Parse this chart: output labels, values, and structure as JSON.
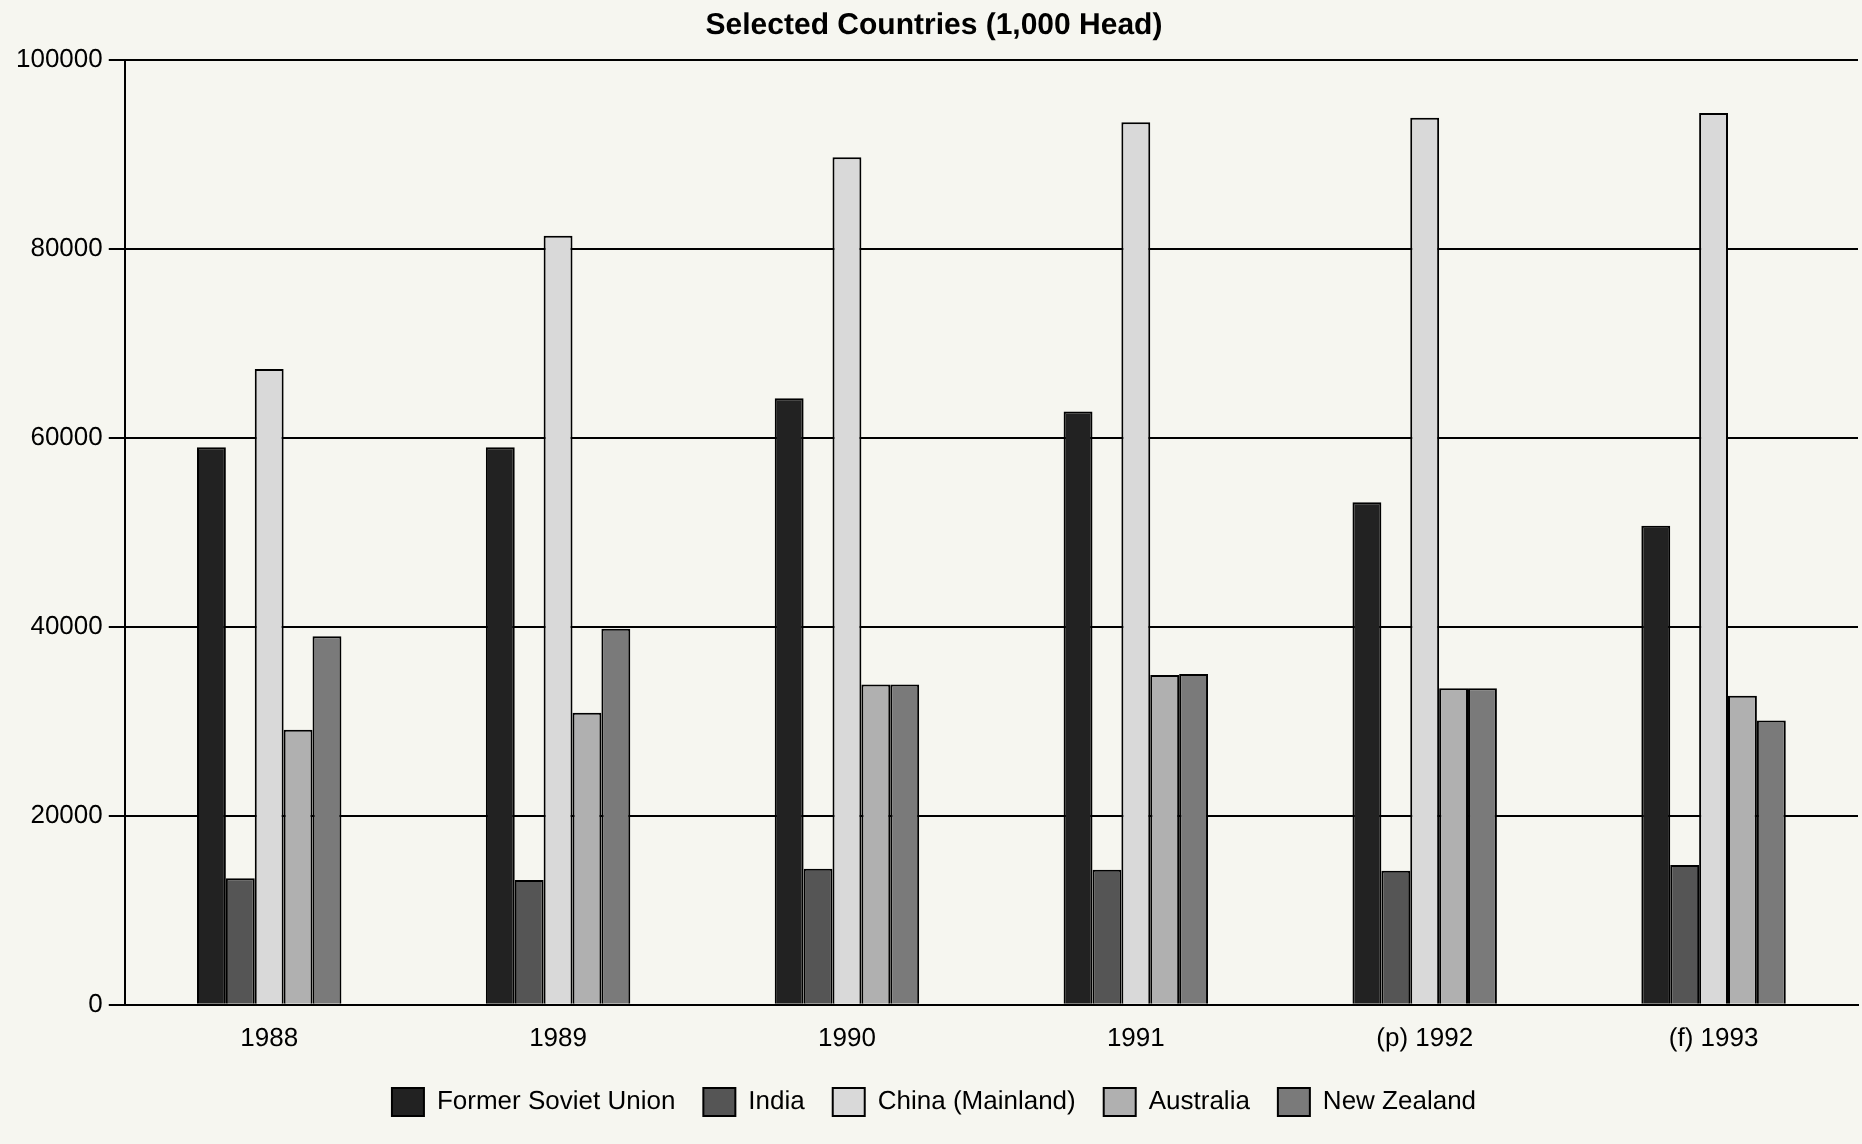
{
  "chart_data": {
    "type": "bar",
    "title": "Selected Countries (1,000 Head)",
    "categories": [
      "1988",
      "1989",
      "1990",
      "1991",
      "(p) 1992",
      "(f) 1993"
    ],
    "series": [
      {
        "name": "Former Soviet Union",
        "color": "#222222",
        "values": [
          59000,
          59000,
          64200,
          62800,
          53200,
          50700
        ]
      },
      {
        "name": "India",
        "color": "#555555",
        "values": [
          13400,
          13200,
          14400,
          14300,
          14200,
          14800
        ]
      },
      {
        "name": "China (Mainland)",
        "color": "#d9d9d9",
        "values": [
          67300,
          81400,
          89700,
          93400,
          93900,
          94400
        ]
      },
      {
        "name": "Australia",
        "color": "#b0b0b0",
        "values": [
          29100,
          30900,
          33900,
          34900,
          33500,
          32700
        ]
      },
      {
        "name": "New Zealand",
        "color": "#7a7a7a",
        "values": [
          39000,
          39800,
          33900,
          35000,
          33500,
          30100
        ]
      }
    ],
    "ylim": [
      0,
      100000
    ],
    "yticks": [
      0,
      20000,
      40000,
      60000,
      80000,
      100000
    ],
    "grid": "y",
    "legend": "bottom"
  }
}
